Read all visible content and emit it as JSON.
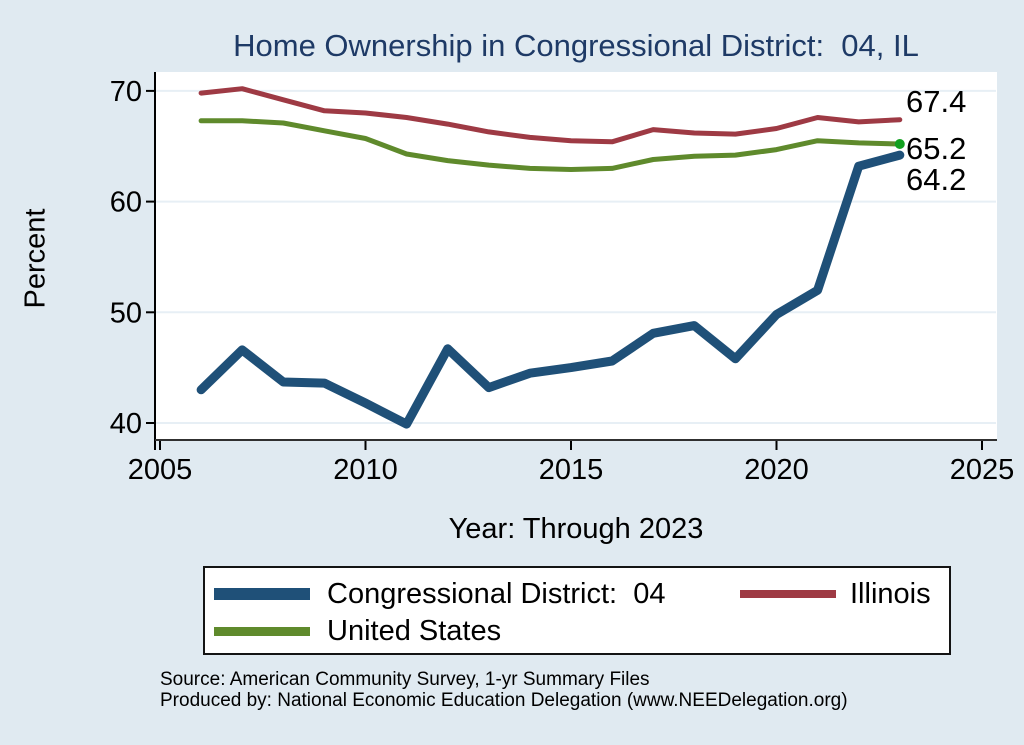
{
  "chart_data": {
    "type": "line",
    "title": "Home Ownership in Congressional District:  04, IL",
    "xlabel": "Year: Through 2023",
    "ylabel": "Percent",
    "x": [
      2006,
      2007,
      2008,
      2009,
      2010,
      2011,
      2012,
      2013,
      2014,
      2015,
      2016,
      2017,
      2018,
      2019,
      2020,
      2021,
      2022,
      2023
    ],
    "series": [
      {
        "name": "Congressional District:  04",
        "color": "#1f5078",
        "line_width": 9,
        "values": [
          43.0,
          46.6,
          43.7,
          43.6,
          41.8,
          39.9,
          46.7,
          43.2,
          44.5,
          45.0,
          45.6,
          48.1,
          48.8,
          45.8,
          49.8,
          52.0,
          63.2,
          64.2
        ],
        "end_label": "64.2"
      },
      {
        "name": "Illinois",
        "color": "#9e3a44",
        "line_width": 5,
        "values": [
          69.8,
          70.2,
          69.2,
          68.2,
          68.0,
          67.6,
          67.0,
          66.3,
          65.8,
          65.5,
          65.4,
          66.5,
          66.2,
          66.1,
          66.6,
          67.6,
          67.2,
          67.4
        ],
        "end_label": "67.4"
      },
      {
        "name": "United States",
        "color": "#5f8a2c",
        "line_width": 5,
        "values": [
          67.3,
          67.3,
          67.1,
          66.4,
          65.7,
          64.3,
          63.7,
          63.3,
          63.0,
          62.9,
          63.0,
          63.8,
          64.1,
          64.2,
          64.7,
          65.5,
          65.3,
          65.2
        ],
        "end_label": "65.2",
        "end_marker_color": "#12a01f"
      }
    ],
    "xlim": [
      2005,
      2025
    ],
    "ylim": [
      40,
      70
    ],
    "xticks": [
      2005,
      2010,
      2015,
      2020,
      2025
    ],
    "yticks": [
      40,
      50,
      60,
      70
    ],
    "grid": true,
    "legend_position": "bottom"
  },
  "source": {
    "line1": "Source: American Community Survey, 1-yr Summary Files",
    "line2": "Produced by: National Economic Education Delegation (www.NEEDelegation.org)"
  },
  "colors": {
    "background": "#e0eaf1",
    "plot_background": "#ffffff",
    "title_text": "#1e3a66",
    "gridline": "#e7eff5",
    "x_axis_line": "#303030",
    "y_axis_line": "#000000",
    "tick_text": "#000000",
    "end_label_text": "#000000"
  }
}
